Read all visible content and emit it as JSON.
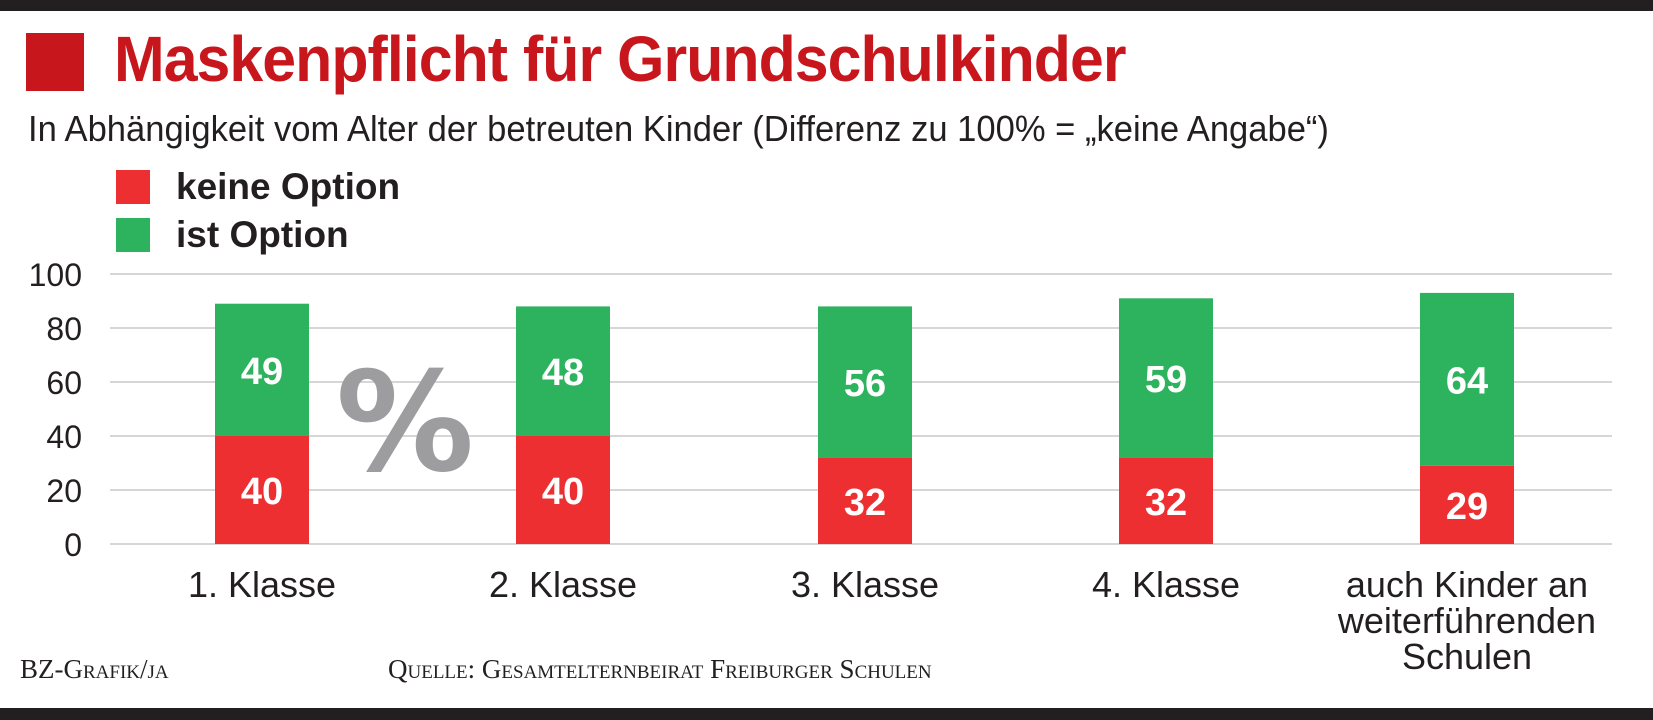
{
  "title": "Maskenpflicht für Grundschulkinder",
  "subtitle": "In Abhängigkeit vom Alter der betreuten Kinder (Differenz zu 100% = „keine Angabe“)",
  "unit_label": "%",
  "footer": {
    "credit": "BZ-Grafik/ja",
    "source": "Quelle: Gesamtelternbeirat Freiburger Schulen"
  },
  "colors": {
    "title": "#c8161d",
    "keine_option": "#ed2f32",
    "ist_option": "#2db35d",
    "grid": "#c8c8c8",
    "unit": "#9d9d9f",
    "text": "#231f20"
  },
  "chart_data": {
    "type": "bar",
    "stacked": true,
    "categories": [
      "1. Klasse",
      "2. Klasse",
      "3. Klasse",
      "4. Klasse",
      "auch Kinder an weiterführenden Schulen"
    ],
    "category_lines": [
      [
        "1. Klasse"
      ],
      [
        "2. Klasse"
      ],
      [
        "3. Klasse"
      ],
      [
        "4. Klasse"
      ],
      [
        "auch Kinder an",
        "weiterführenden",
        "Schulen"
      ]
    ],
    "series": [
      {
        "name": "keine Option",
        "values": [
          40,
          40,
          32,
          32,
          29
        ]
      },
      {
        "name": "ist Option",
        "values": [
          49,
          48,
          56,
          59,
          64
        ]
      }
    ],
    "ylim": [
      0,
      100
    ],
    "yticks": [
      "0",
      "20",
      "40",
      "60",
      "80",
      "100"
    ],
    "xlabel": "",
    "ylabel": "",
    "grid": true,
    "legend": "top-left"
  }
}
